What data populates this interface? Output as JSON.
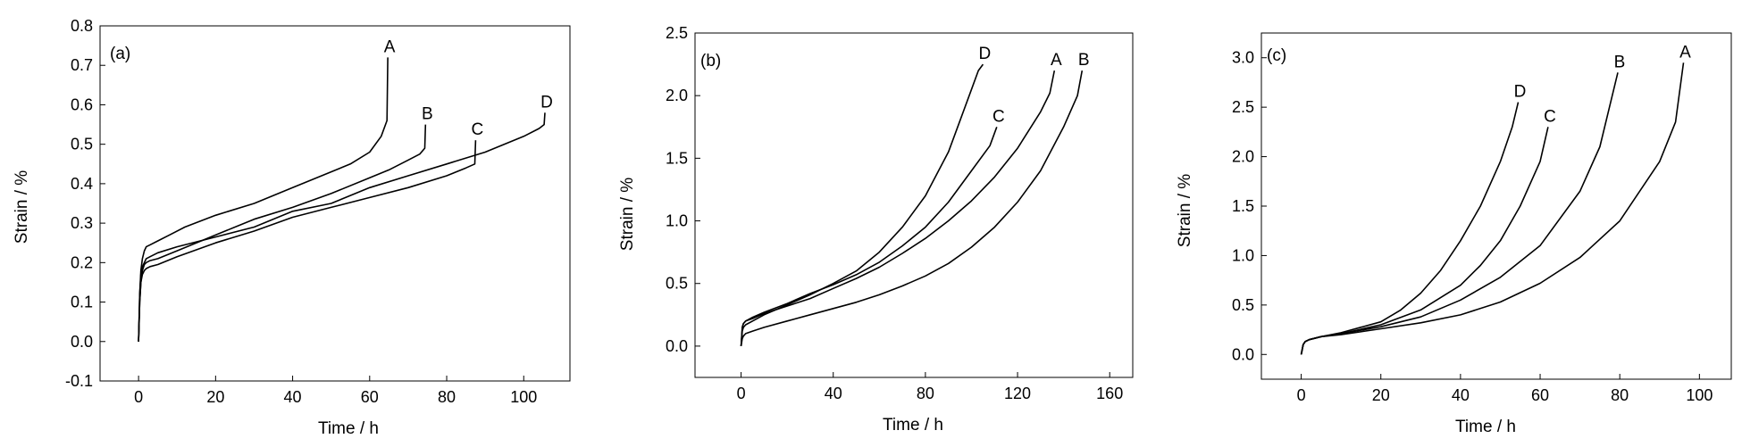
{
  "chart_data": [
    {
      "type": "line",
      "panel_label": "(a)",
      "xlabel": "Time / h",
      "ylabel": "Strain / %",
      "xlim": [
        -10,
        112
      ],
      "ylim": [
        -0.1,
        0.8
      ],
      "xticks": [
        0,
        20,
        40,
        60,
        80,
        100
      ],
      "xtick_labels": [
        "0",
        "20",
        "40",
        "60",
        "80",
        "100"
      ],
      "yticks": [
        -0.1,
        0.0,
        0.1,
        0.2,
        0.3,
        0.4,
        0.5,
        0.6,
        0.7,
        0.8
      ],
      "ytick_labels": [
        "-0.1",
        "0.0",
        "0.1",
        "0.2",
        "0.3",
        "0.4",
        "0.5",
        "0.6",
        "0.7",
        "0.8"
      ],
      "grid": false,
      "legend": "none",
      "series": [
        {
          "name": "A",
          "x": [
            0,
            0.3,
            0.6,
            1,
            1.5,
            2,
            3,
            5,
            8,
            12,
            20,
            30,
            40,
            50,
            55,
            60,
            63,
            64.5,
            64.7
          ],
          "y": [
            0,
            0.12,
            0.18,
            0.21,
            0.23,
            0.24,
            0.245,
            0.255,
            0.27,
            0.29,
            0.32,
            0.35,
            0.39,
            0.43,
            0.45,
            0.48,
            0.52,
            0.56,
            0.72
          ]
        },
        {
          "name": "B",
          "x": [
            0,
            0.3,
            0.6,
            1,
            1.5,
            2,
            3,
            5,
            10,
            20,
            30,
            40,
            50,
            60,
            65,
            70,
            73,
            74.3,
            74.5
          ],
          "y": [
            0,
            0.1,
            0.15,
            0.18,
            0.195,
            0.2,
            0.205,
            0.21,
            0.23,
            0.27,
            0.31,
            0.34,
            0.375,
            0.415,
            0.435,
            0.46,
            0.475,
            0.49,
            0.55
          ]
        },
        {
          "name": "C",
          "x": [
            0,
            0.3,
            0.6,
            1,
            1.5,
            2,
            3,
            5,
            10,
            20,
            30,
            40,
            50,
            60,
            70,
            80,
            85,
            87.3,
            87.5
          ],
          "y": [
            0,
            0.1,
            0.15,
            0.17,
            0.18,
            0.185,
            0.19,
            0.195,
            0.215,
            0.25,
            0.28,
            0.315,
            0.34,
            0.365,
            0.39,
            0.42,
            0.44,
            0.45,
            0.51
          ]
        },
        {
          "name": "D",
          "x": [
            0,
            0.3,
            0.6,
            1,
            1.5,
            2,
            3,
            5,
            10,
            20,
            30,
            40,
            50,
            60,
            70,
            80,
            90,
            100,
            104,
            105.3,
            105.5
          ],
          "y": [
            0,
            0.12,
            0.17,
            0.19,
            0.2,
            0.21,
            0.215,
            0.225,
            0.24,
            0.265,
            0.29,
            0.33,
            0.35,
            0.39,
            0.42,
            0.45,
            0.48,
            0.52,
            0.54,
            0.55,
            0.58
          ]
        }
      ],
      "annotations": [
        "A",
        "B",
        "C",
        "D"
      ]
    },
    {
      "type": "line",
      "panel_label": "(b)",
      "xlabel": "Time / h",
      "ylabel": "Strain / %",
      "xlim": [
        -20,
        170
      ],
      "ylim": [
        -0.25,
        2.5
      ],
      "xticks": [
        0,
        40,
        80,
        120,
        160
      ],
      "xtick_labels": [
        "0",
        "40",
        "80",
        "120",
        "160"
      ],
      "yticks": [
        0.0,
        0.5,
        1.0,
        1.5,
        2.0,
        2.5
      ],
      "ytick_labels": [
        "0.0",
        "0.5",
        "1.0",
        "1.5",
        "2.0",
        "2.5"
      ],
      "grid": false,
      "legend": "none",
      "series": [
        {
          "name": "D",
          "x": [
            0,
            0.5,
            1,
            2,
            5,
            10,
            20,
            30,
            40,
            50,
            60,
            70,
            80,
            90,
            95,
            100,
            103,
            105
          ],
          "y": [
            0,
            0.12,
            0.15,
            0.17,
            0.2,
            0.25,
            0.33,
            0.41,
            0.5,
            0.6,
            0.75,
            0.95,
            1.2,
            1.55,
            1.8,
            2.05,
            2.2,
            2.25
          ]
        },
        {
          "name": "C",
          "x": [
            0,
            0.5,
            1,
            2,
            5,
            10,
            20,
            30,
            40,
            50,
            60,
            70,
            80,
            90,
            100,
            108,
            111
          ],
          "y": [
            0,
            0.15,
            0.18,
            0.2,
            0.23,
            0.27,
            0.34,
            0.42,
            0.49,
            0.57,
            0.67,
            0.8,
            0.95,
            1.15,
            1.4,
            1.6,
            1.75
          ]
        },
        {
          "name": "A",
          "x": [
            0,
            0.5,
            1,
            2,
            5,
            10,
            20,
            30,
            40,
            50,
            60,
            70,
            80,
            90,
            100,
            110,
            120,
            130,
            134,
            136
          ],
          "y": [
            0,
            0.15,
            0.18,
            0.2,
            0.22,
            0.26,
            0.32,
            0.38,
            0.46,
            0.54,
            0.63,
            0.74,
            0.86,
            1.0,
            1.16,
            1.35,
            1.58,
            1.87,
            2.02,
            2.2
          ]
        },
        {
          "name": "B",
          "x": [
            0,
            0.5,
            1,
            2,
            5,
            10,
            20,
            30,
            40,
            50,
            60,
            70,
            80,
            90,
            100,
            110,
            120,
            130,
            140,
            146,
            148
          ],
          "y": [
            0,
            0.06,
            0.08,
            0.1,
            0.12,
            0.15,
            0.2,
            0.25,
            0.3,
            0.35,
            0.41,
            0.48,
            0.56,
            0.66,
            0.79,
            0.95,
            1.15,
            1.4,
            1.75,
            2.0,
            2.2
          ]
        }
      ],
      "annotations": [
        "D",
        "C",
        "A",
        "B"
      ]
    },
    {
      "type": "line",
      "panel_label": "(c)",
      "xlabel": "Time / h",
      "ylabel": "Strain / %",
      "xlim": [
        -10,
        108
      ],
      "ylim": [
        -0.25,
        3.25
      ],
      "xticks": [
        0,
        20,
        40,
        60,
        80,
        100
      ],
      "xtick_labels": [
        "0",
        "20",
        "40",
        "60",
        "80",
        "100"
      ],
      "yticks": [
        0.0,
        0.5,
        1.0,
        1.5,
        2.0,
        2.5,
        3.0
      ],
      "ytick_labels": [
        "0.0",
        "0.5",
        "1.0",
        "1.5",
        "2.0",
        "2.5",
        "3.0"
      ],
      "grid": false,
      "legend": "none",
      "series": [
        {
          "name": "D",
          "x": [
            0,
            0.5,
            1,
            2,
            5,
            10,
            20,
            25,
            30,
            35,
            40,
            45,
            50,
            53,
            54.5
          ],
          "y": [
            0,
            0.1,
            0.13,
            0.15,
            0.18,
            0.22,
            0.33,
            0.45,
            0.62,
            0.85,
            1.15,
            1.5,
            1.95,
            2.3,
            2.55
          ]
        },
        {
          "name": "C",
          "x": [
            0,
            0.5,
            1,
            2,
            5,
            10,
            20,
            30,
            40,
            45,
            50,
            55,
            60,
            62
          ],
          "y": [
            0,
            0.1,
            0.13,
            0.15,
            0.18,
            0.21,
            0.3,
            0.45,
            0.7,
            0.9,
            1.15,
            1.5,
            1.95,
            2.3
          ]
        },
        {
          "name": "B",
          "x": [
            0,
            0.5,
            1,
            2,
            5,
            10,
            20,
            30,
            40,
            50,
            60,
            70,
            75,
            79.5
          ],
          "y": [
            0,
            0.1,
            0.13,
            0.15,
            0.18,
            0.21,
            0.28,
            0.38,
            0.55,
            0.78,
            1.1,
            1.65,
            2.1,
            2.85
          ]
        },
        {
          "name": "A",
          "x": [
            0,
            0.5,
            1,
            2,
            5,
            10,
            20,
            30,
            40,
            50,
            60,
            70,
            80,
            90,
            94,
            96
          ],
          "y": [
            0,
            0.1,
            0.13,
            0.15,
            0.18,
            0.2,
            0.26,
            0.32,
            0.4,
            0.53,
            0.72,
            0.98,
            1.35,
            1.95,
            2.35,
            2.95
          ]
        }
      ],
      "annotations": [
        "D",
        "C",
        "B",
        "A"
      ]
    }
  ]
}
